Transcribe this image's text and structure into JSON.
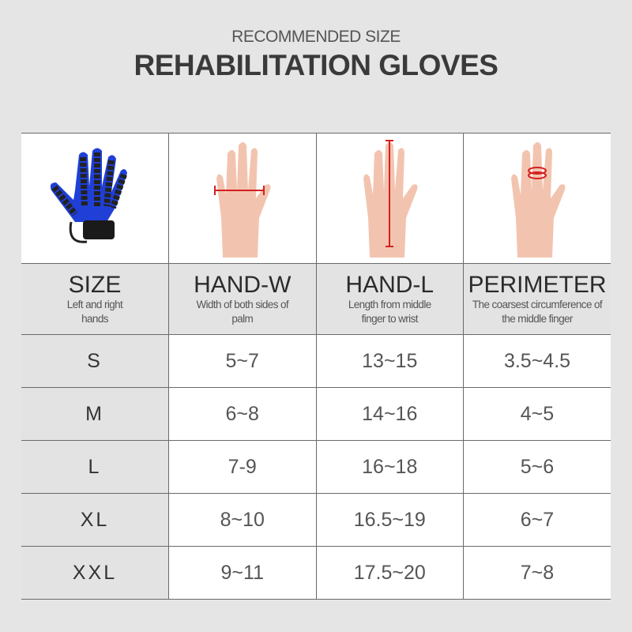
{
  "header": {
    "subtitle": "RECOMMENDED SIZE",
    "title": "REHABILITATION GLOVES"
  },
  "columns": [
    {
      "title": "SIZE",
      "desc": "Left and right hands"
    },
    {
      "title": "HAND-W",
      "desc": "Width of both sides of palm"
    },
    {
      "title": "HAND-L",
      "desc": "Length from middle finger to wrist"
    },
    {
      "title": "PERIMETER",
      "desc": "The coarsest circumference of the middle finger"
    }
  ],
  "rows": [
    {
      "size": "S",
      "hand_w": "5~7",
      "hand_l": "13~15",
      "perimeter": "3.5~4.5"
    },
    {
      "size": "M",
      "hand_w": "6~8",
      "hand_l": "14~16",
      "perimeter": "4~5"
    },
    {
      "size": "L",
      "hand_w": "7-9",
      "hand_l": "16~18",
      "perimeter": "5~6"
    },
    {
      "size": "XL",
      "hand_w": "8~10",
      "hand_l": "16.5~19",
      "perimeter": "6~7"
    },
    {
      "size": "XXL",
      "hand_w": "9~11",
      "hand_l": "17.5~20",
      "perimeter": "7~8"
    }
  ],
  "colors": {
    "glove": "#1f3fd6",
    "measure": "#d42020",
    "skin": "#f2c4b0"
  }
}
